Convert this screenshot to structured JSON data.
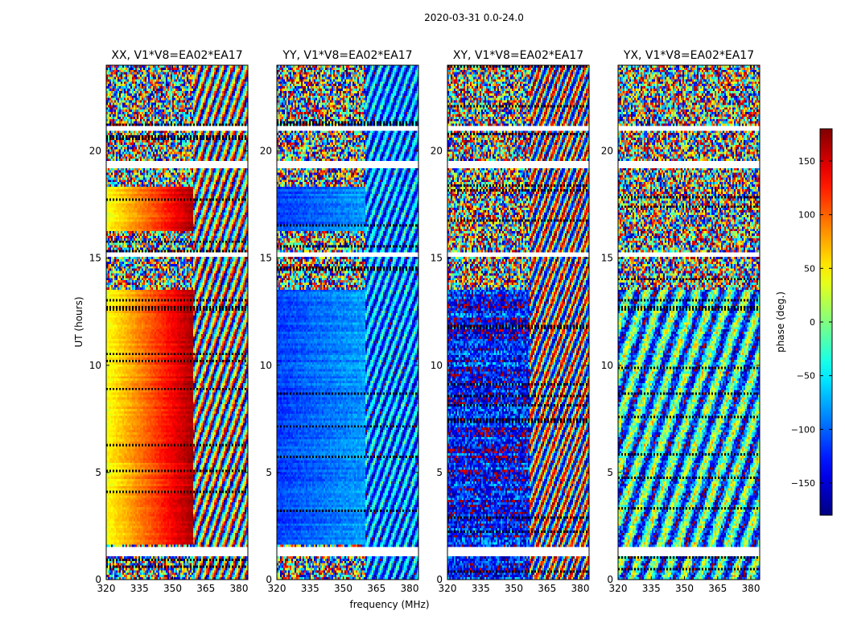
{
  "figure_title": "2020-03-31 0.0-24.0",
  "chart_data": {
    "type": "heatmap",
    "shared_xlabel": "frequency (MHz)",
    "shared_ylabel": "UT (hours)",
    "xlim": [
      320,
      384
    ],
    "ylim": [
      0,
      24
    ],
    "xticks": [
      320,
      335,
      350,
      365,
      380
    ],
    "yticks": [
      0,
      5,
      10,
      15,
      20
    ],
    "panels": [
      {
        "id": "xx",
        "title": "XX, V1*V8=EA02*EA17",
        "pattern": "xx"
      },
      {
        "id": "yy",
        "title": "YY, V1*V8=EA02*EA17",
        "pattern": "yy"
      },
      {
        "id": "xy",
        "title": "XY, V1*V8=EA02*EA17",
        "pattern": "xy"
      },
      {
        "id": "yx",
        "title": "YX, V1*V8=EA02*EA17",
        "pattern": "yx"
      }
    ],
    "colorbar": {
      "label": "phase (deg.)",
      "colormap": "jet",
      "range": [
        -180,
        180
      ],
      "ticks": [
        -150,
        -100,
        -50,
        0,
        50,
        100,
        150
      ],
      "tick_labels": [
        "−150",
        "−100",
        "−50",
        "0",
        "50",
        "100",
        "150"
      ]
    },
    "flagged_ut_ranges": [
      [
        1.1,
        1.5
      ],
      [
        19.2,
        19.5
      ],
      [
        21.0,
        21.15
      ],
      [
        15.1,
        15.3
      ]
    ]
  }
}
